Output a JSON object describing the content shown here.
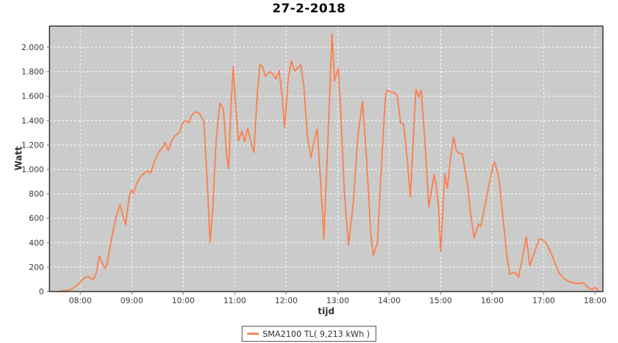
{
  "colors": {
    "series": "#F9824E",
    "plot_background": "#CBCBCB",
    "gridline": "#FFFFFF",
    "plot_border": "#2b2b2b",
    "tick_mark": "#707070",
    "tick_label": "#3a3a3a",
    "title_text": "#0a0a0a",
    "page_background": "#FFFFFF"
  },
  "chart_data": {
    "type": "line",
    "title": "27-2-2018",
    "xlabel": "tijd",
    "ylabel": "Watt",
    "grid": true,
    "legend_position": "bottom-center",
    "xlim_hours": [
      7.4,
      18.15
    ],
    "ylim": [
      0,
      2174
    ],
    "x_ticks": [
      {
        "hour": 8,
        "label": "08:00"
      },
      {
        "hour": 9,
        "label": "09:00"
      },
      {
        "hour": 10,
        "label": "10:00"
      },
      {
        "hour": 11,
        "label": "11:00"
      },
      {
        "hour": 12,
        "label": "12:00"
      },
      {
        "hour": 13,
        "label": "13:00"
      },
      {
        "hour": 14,
        "label": "14:00"
      },
      {
        "hour": 15,
        "label": "15:00"
      },
      {
        "hour": 16,
        "label": "16:00"
      },
      {
        "hour": 17,
        "label": "17:00"
      },
      {
        "hour": 18,
        "label": "18:00"
      }
    ],
    "y_ticks": [
      {
        "value": 0,
        "label": "0"
      },
      {
        "value": 200,
        "label": "200"
      },
      {
        "value": 400,
        "label": "400"
      },
      {
        "value": 600,
        "label": "600"
      },
      {
        "value": 800,
        "label": "800"
      },
      {
        "value": 1000,
        "label": "1.000"
      },
      {
        "value": 1200,
        "label": "1.200"
      },
      {
        "value": 1400,
        "label": "1.400"
      },
      {
        "value": 1600,
        "label": "1.600"
      },
      {
        "value": 1800,
        "label": "1.800"
      },
      {
        "value": 2000,
        "label": "2.000"
      }
    ],
    "series": [
      {
        "name": "SMA2100 TL( 9,213 kWh )",
        "color": "#F9824E",
        "points_hour_watt": [
          [
            7.56,
            0
          ],
          [
            7.65,
            5
          ],
          [
            7.77,
            12
          ],
          [
            7.84,
            22
          ],
          [
            7.91,
            42
          ],
          [
            7.96,
            60
          ],
          [
            8.0,
            78
          ],
          [
            8.08,
            112
          ],
          [
            8.15,
            123
          ],
          [
            8.25,
            95
          ],
          [
            8.31,
            150
          ],
          [
            8.37,
            292
          ],
          [
            8.43,
            230
          ],
          [
            8.47,
            192
          ],
          [
            8.51,
            205
          ],
          [
            8.57,
            350
          ],
          [
            8.64,
            505
          ],
          [
            8.71,
            630
          ],
          [
            8.77,
            713
          ],
          [
            8.83,
            620
          ],
          [
            8.88,
            548
          ],
          [
            8.95,
            780
          ],
          [
            8.99,
            832
          ],
          [
            9.03,
            805
          ],
          [
            9.1,
            890
          ],
          [
            9.17,
            940
          ],
          [
            9.23,
            966
          ],
          [
            9.31,
            990
          ],
          [
            9.37,
            970
          ],
          [
            9.44,
            1065
          ],
          [
            9.52,
            1140
          ],
          [
            9.61,
            1190
          ],
          [
            9.64,
            1220
          ],
          [
            9.71,
            1155
          ],
          [
            9.78,
            1240
          ],
          [
            9.84,
            1275
          ],
          [
            9.92,
            1300
          ],
          [
            10.0,
            1390
          ],
          [
            10.06,
            1398
          ],
          [
            10.11,
            1382
          ],
          [
            10.16,
            1440
          ],
          [
            10.23,
            1472
          ],
          [
            10.31,
            1460
          ],
          [
            10.4,
            1395
          ],
          [
            10.46,
            950
          ],
          [
            10.52,
            404
          ],
          [
            10.57,
            660
          ],
          [
            10.64,
            1250
          ],
          [
            10.71,
            1545
          ],
          [
            10.78,
            1490
          ],
          [
            10.84,
            1120
          ],
          [
            10.88,
            1005
          ],
          [
            10.93,
            1560
          ],
          [
            10.97,
            1843
          ],
          [
            11.01,
            1560
          ],
          [
            11.07,
            1235
          ],
          [
            11.14,
            1315
          ],
          [
            11.19,
            1225
          ],
          [
            11.25,
            1335
          ],
          [
            11.3,
            1245
          ],
          [
            11.37,
            1140
          ],
          [
            11.44,
            1640
          ],
          [
            11.49,
            1862
          ],
          [
            11.54,
            1840
          ],
          [
            11.6,
            1760
          ],
          [
            11.67,
            1800
          ],
          [
            11.73,
            1788
          ],
          [
            11.8,
            1742
          ],
          [
            11.86,
            1808
          ],
          [
            11.92,
            1600
          ],
          [
            11.97,
            1345
          ],
          [
            12.04,
            1750
          ],
          [
            12.1,
            1892
          ],
          [
            12.16,
            1805
          ],
          [
            12.22,
            1830
          ],
          [
            12.28,
            1858
          ],
          [
            12.34,
            1690
          ],
          [
            12.41,
            1280
          ],
          [
            12.48,
            1095
          ],
          [
            12.54,
            1230
          ],
          [
            12.6,
            1330
          ],
          [
            12.66,
            950
          ],
          [
            12.73,
            432
          ],
          [
            12.81,
            1250
          ],
          [
            12.89,
            2110
          ],
          [
            12.94,
            1725
          ],
          [
            13.01,
            1828
          ],
          [
            13.06,
            1450
          ],
          [
            13.13,
            800
          ],
          [
            13.21,
            382
          ],
          [
            13.3,
            720
          ],
          [
            13.39,
            1270
          ],
          [
            13.48,
            1556
          ],
          [
            13.56,
            1080
          ],
          [
            13.64,
            480
          ],
          [
            13.69,
            298
          ],
          [
            13.77,
            400
          ],
          [
            13.85,
            1050
          ],
          [
            13.93,
            1615
          ],
          [
            13.96,
            1648
          ],
          [
            14.04,
            1632
          ],
          [
            14.11,
            1628
          ],
          [
            14.16,
            1598
          ],
          [
            14.22,
            1380
          ],
          [
            14.28,
            1368
          ],
          [
            14.35,
            1080
          ],
          [
            14.41,
            775
          ],
          [
            14.47,
            1280
          ],
          [
            14.52,
            1657
          ],
          [
            14.57,
            1592
          ],
          [
            14.62,
            1648
          ],
          [
            14.69,
            1250
          ],
          [
            14.77,
            691
          ],
          [
            14.87,
            955
          ],
          [
            14.91,
            876
          ],
          [
            14.96,
            680
          ],
          [
            15.0,
            326
          ],
          [
            15.08,
            966
          ],
          [
            15.13,
            845
          ],
          [
            15.19,
            1095
          ],
          [
            15.25,
            1264
          ],
          [
            15.3,
            1160
          ],
          [
            15.34,
            1135
          ],
          [
            15.42,
            1128
          ],
          [
            15.52,
            880
          ],
          [
            15.58,
            640
          ],
          [
            15.65,
            438
          ],
          [
            15.73,
            552
          ],
          [
            15.78,
            534
          ],
          [
            15.86,
            705
          ],
          [
            15.94,
            880
          ],
          [
            16.02,
            1040
          ],
          [
            16.05,
            1062
          ],
          [
            16.13,
            930
          ],
          [
            16.22,
            560
          ],
          [
            16.29,
            280
          ],
          [
            16.34,
            142
          ],
          [
            16.44,
            158
          ],
          [
            16.51,
            118
          ],
          [
            16.58,
            260
          ],
          [
            16.66,
            449
          ],
          [
            16.73,
            213
          ],
          [
            16.82,
            320
          ],
          [
            16.91,
            430
          ],
          [
            16.98,
            424
          ],
          [
            17.06,
            388
          ],
          [
            17.16,
            298
          ],
          [
            17.22,
            232
          ],
          [
            17.29,
            158
          ],
          [
            17.38,
            110
          ],
          [
            17.48,
            84
          ],
          [
            17.58,
            72
          ],
          [
            17.68,
            66
          ],
          [
            17.77,
            73
          ],
          [
            17.86,
            32
          ],
          [
            17.94,
            16
          ],
          [
            17.99,
            35
          ],
          [
            18.03,
            20
          ],
          [
            18.07,
            2
          ]
        ]
      }
    ]
  },
  "legend": {
    "label": "SMA2100 TL( 9,213 kWh )"
  }
}
